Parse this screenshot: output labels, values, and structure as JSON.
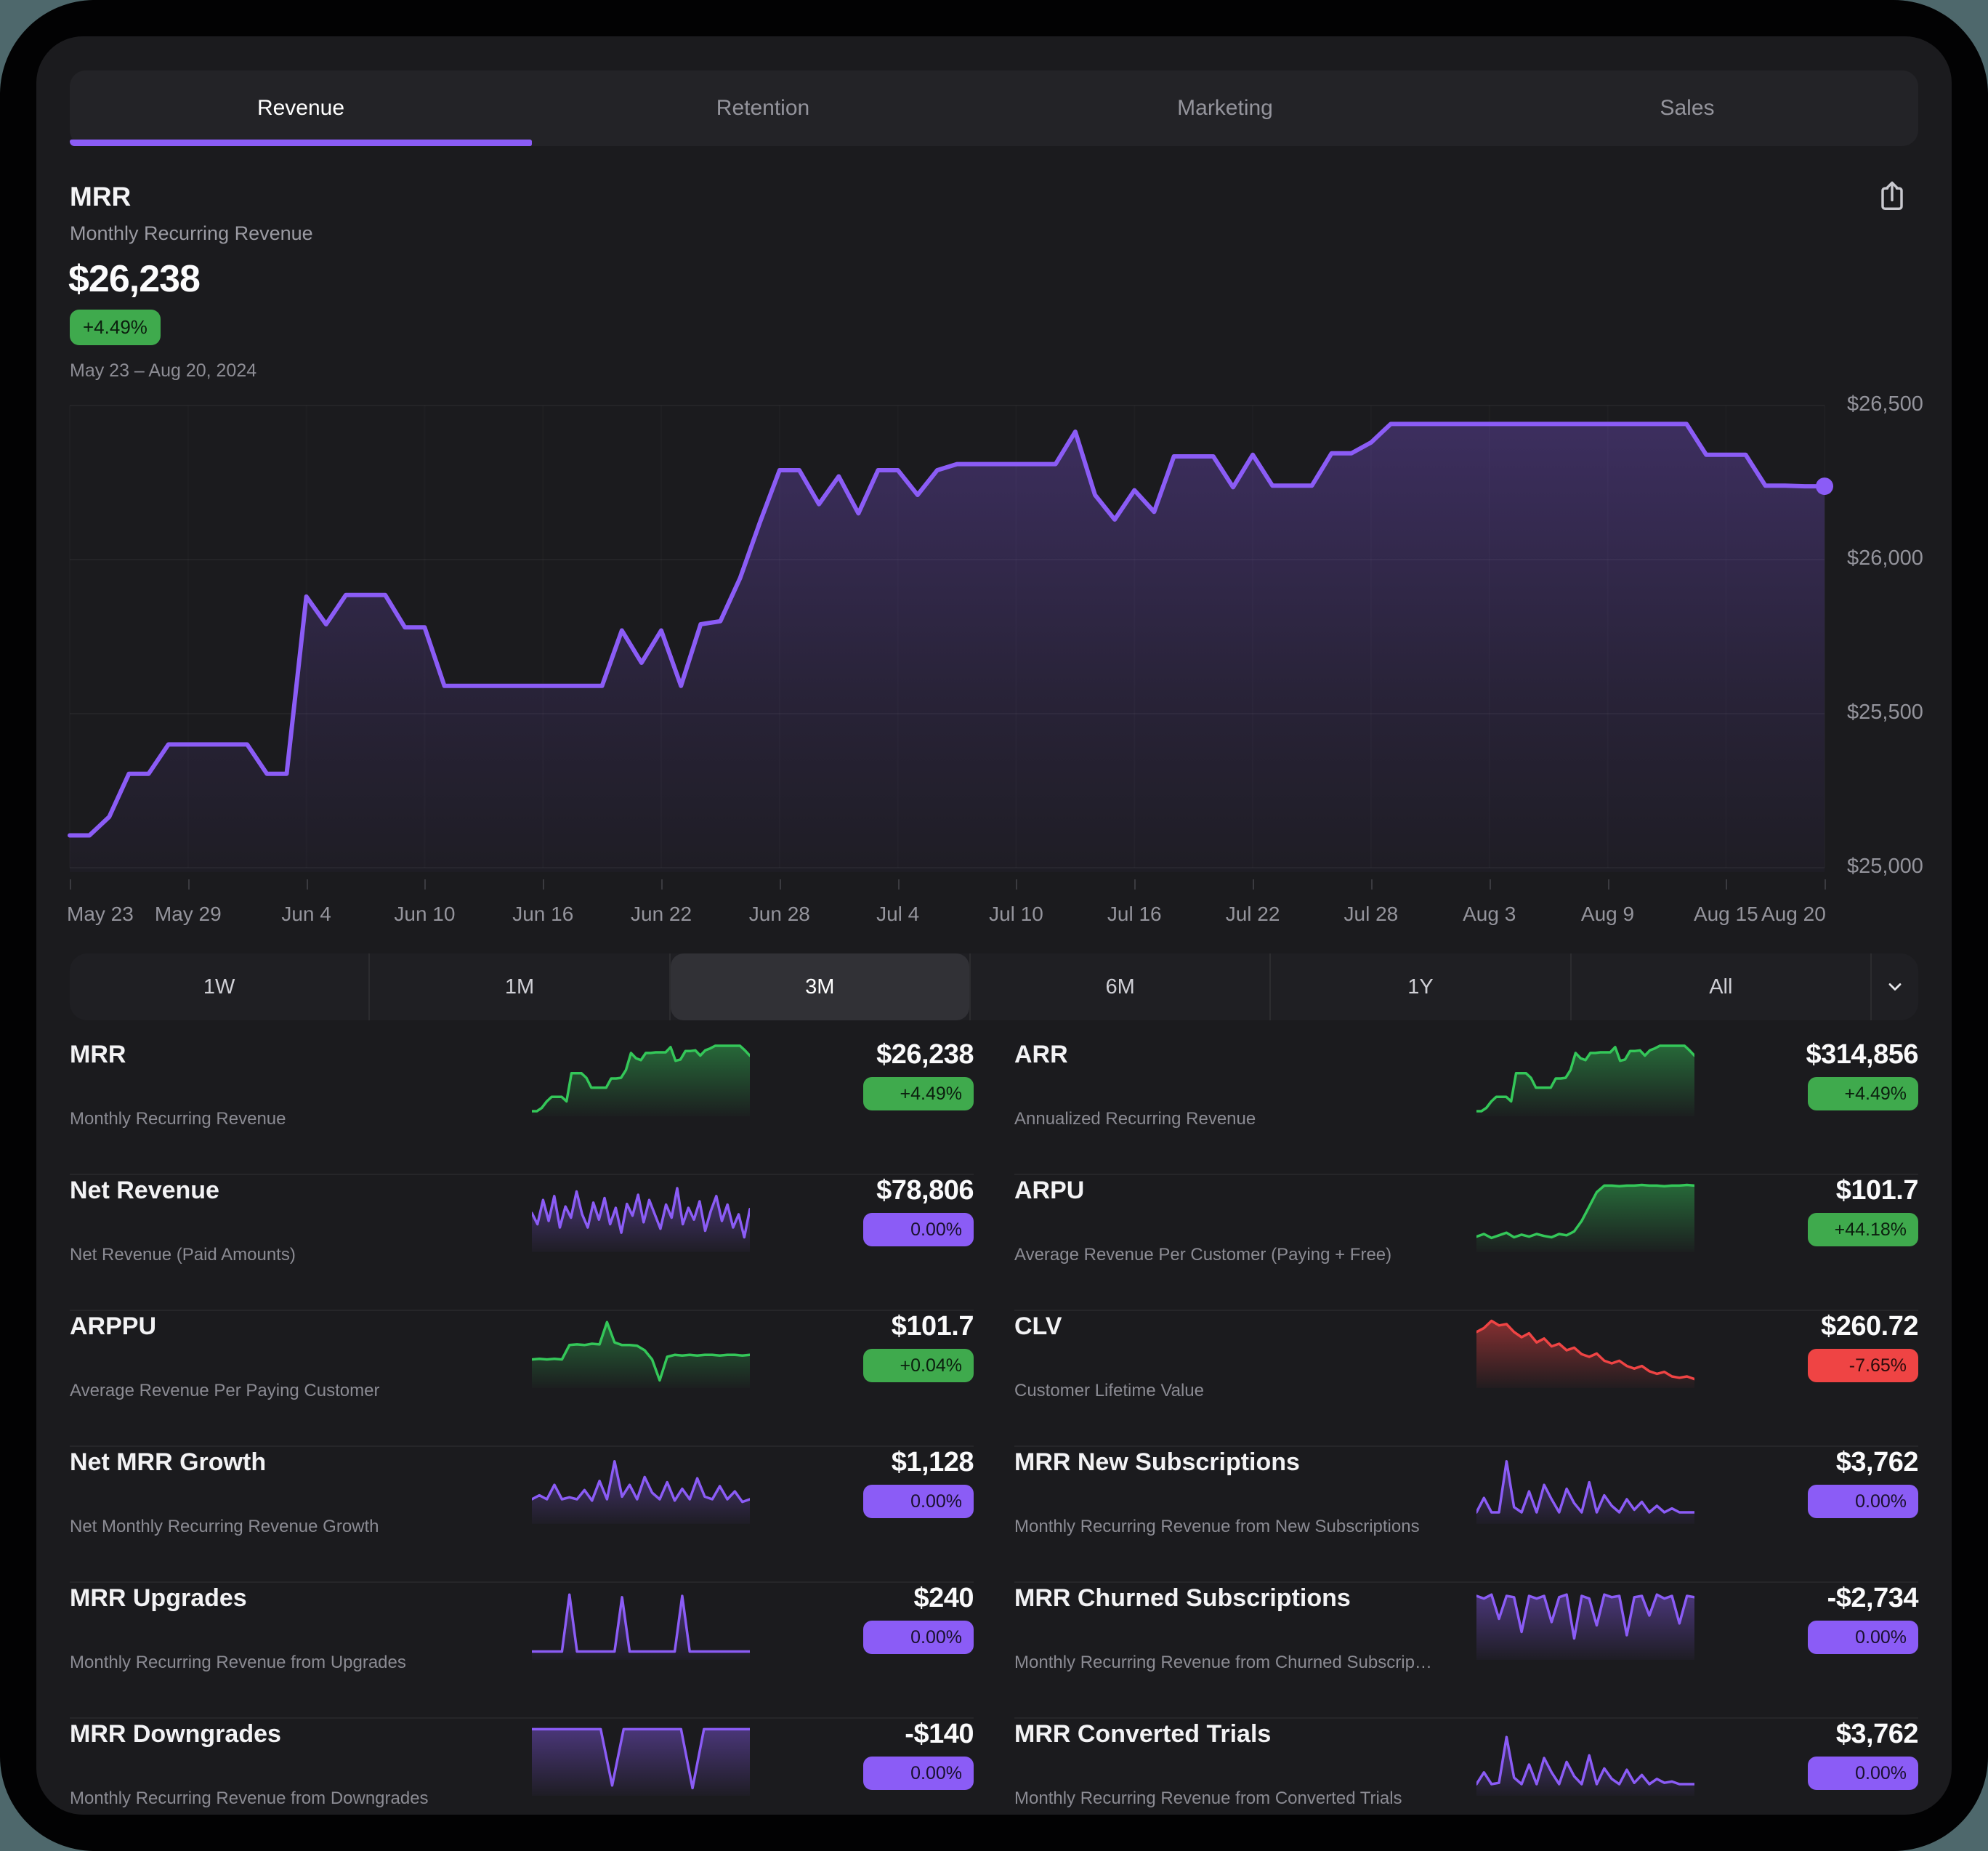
{
  "colors": {
    "accent_purple": "#8b5cf6",
    "positive_green": "#3faa4d",
    "negative_red": "#ef4444",
    "spark_green": "#34c759",
    "app_background": "#1b1b1e"
  },
  "tabs": {
    "items": [
      {
        "label": "Revenue",
        "active": true
      },
      {
        "label": "Retention",
        "active": false
      },
      {
        "label": "Marketing",
        "active": false
      },
      {
        "label": "Sales",
        "active": false
      }
    ]
  },
  "header": {
    "title": "MRR",
    "subtitle": "Monthly Recurring Revenue",
    "value": "$26,238",
    "change": "+4.49%",
    "change_direction": "up",
    "date_range": "May 23 – Aug 20, 2024"
  },
  "chart_data": {
    "type": "area",
    "title": "MRR",
    "period_label": "May 23 – Aug 20, 2024",
    "line_color": "#8b5cf6",
    "ylim": [
      25000,
      26500
    ],
    "y_ticks": [
      {
        "label": "$26,500",
        "value": 26500
      },
      {
        "label": "$26,000",
        "value": 26000
      },
      {
        "label": "$25,500",
        "value": 25500
      },
      {
        "label": "$25,000",
        "value": 25000
      }
    ],
    "x_tick_labels": [
      "May 23",
      "May 29",
      "Jun 4",
      "Jun 10",
      "Jun 16",
      "Jun 22",
      "Jun 28",
      "Jul 4",
      "Jul 10",
      "Jul 16",
      "Jul 22",
      "Jul 28",
      "Aug 3",
      "Aug 9",
      "Aug 15",
      "Aug 20"
    ],
    "x_tick_days": [
      0,
      6,
      12,
      18,
      24,
      30,
      36,
      42,
      48,
      54,
      60,
      66,
      72,
      78,
      84,
      89
    ],
    "end_value": 26238,
    "values": [
      25105,
      25105,
      25165,
      25305,
      25305,
      25400,
      25400,
      25400,
      25400,
      25400,
      25305,
      25305,
      25880,
      25790,
      25885,
      25885,
      25885,
      25780,
      25780,
      25590,
      25590,
      25590,
      25590,
      25590,
      25590,
      25590,
      25590,
      25590,
      25770,
      25665,
      25770,
      25590,
      25790,
      25800,
      25940,
      26120,
      26290,
      26290,
      26180,
      26270,
      26150,
      26290,
      26290,
      26210,
      26290,
      26310,
      26310,
      26310,
      26310,
      26310,
      26310,
      26415,
      26210,
      26130,
      26225,
      26155,
      26335,
      26335,
      26335,
      26235,
      26340,
      26240,
      26240,
      26240,
      26345,
      26345,
      26380,
      26440,
      26440,
      26440,
      26440,
      26440,
      26440,
      26440,
      26440,
      26440,
      26440,
      26440,
      26440,
      26440,
      26440,
      26440,
      26440,
      26340,
      26340,
      26340,
      26240,
      26240,
      26238,
      26238
    ]
  },
  "range_selector": {
    "options": [
      "1W",
      "1M",
      "3M",
      "6M",
      "1Y",
      "All"
    ],
    "selected": "3M"
  },
  "metrics": [
    {
      "id": "mrr",
      "title": "MRR",
      "subtitle": "Monthly Recurring Revenue",
      "value": "$26,238",
      "change": "+4.49%",
      "trend": "up",
      "spark_color": "green",
      "spark": [
        0,
        0,
        0.05,
        0.15,
        0.22,
        0.22,
        0.22,
        0.15,
        0.58,
        0.58,
        0.58,
        0.51,
        0.36,
        0.36,
        0.36,
        0.36,
        0.5,
        0.5,
        0.51,
        0.63,
        0.89,
        0.81,
        0.78,
        0.89,
        0.89,
        0.9,
        0.9,
        0.9,
        0.98,
        0.77,
        0.79,
        0.92,
        0.92,
        0.93,
        0.85,
        0.93,
        0.96,
        1,
        1,
        1,
        1,
        1,
        1,
        0.93,
        0.85
      ]
    },
    {
      "id": "arr",
      "title": "ARR",
      "subtitle": "Annualized Recurring Revenue",
      "value": "$314,856",
      "change": "+4.49%",
      "trend": "up",
      "spark_color": "green",
      "spark": [
        0,
        0,
        0.05,
        0.15,
        0.22,
        0.22,
        0.22,
        0.15,
        0.58,
        0.58,
        0.58,
        0.51,
        0.36,
        0.36,
        0.36,
        0.36,
        0.5,
        0.5,
        0.51,
        0.63,
        0.89,
        0.81,
        0.78,
        0.89,
        0.89,
        0.9,
        0.9,
        0.9,
        0.98,
        0.77,
        0.79,
        0.92,
        0.92,
        0.93,
        0.85,
        0.93,
        0.96,
        1,
        1,
        1,
        1,
        1,
        1,
        0.93,
        0.85
      ]
    },
    {
      "id": "net-revenue",
      "title": "Net Revenue",
      "subtitle": "Net Revenue (Paid Amounts)",
      "value": "$78,806",
      "change": "0.00%",
      "trend": "neutral",
      "spark_color": "purple",
      "spark": [
        0.52,
        0.35,
        0.72,
        0.4,
        0.78,
        0.3,
        0.62,
        0.45,
        0.85,
        0.5,
        0.3,
        0.68,
        0.42,
        0.75,
        0.35,
        0.6,
        0.22,
        0.66,
        0.48,
        0.8,
        0.38,
        0.72,
        0.5,
        0.28,
        0.65,
        0.45,
        0.9,
        0.35,
        0.6,
        0.42,
        0.7,
        0.25,
        0.55,
        0.78,
        0.4,
        0.65,
        0.3,
        0.5,
        0.15,
        0.58
      ]
    },
    {
      "id": "arpu",
      "title": "ARPU",
      "subtitle": "Average Revenue Per Customer (Paying + Free)",
      "value": "$101.7",
      "change": "+44.18%",
      "trend": "up",
      "spark_color": "green",
      "spark": [
        0.16,
        0.2,
        0.14,
        0.18,
        0.22,
        0.15,
        0.19,
        0.16,
        0.2,
        0.17,
        0.15,
        0.2,
        0.18,
        0.24,
        0.4,
        0.62,
        0.84,
        0.94,
        0.94,
        0.93,
        0.94,
        0.94,
        0.95,
        0.94,
        0.94,
        0.93,
        0.94,
        0.94,
        0.95,
        0.94
      ]
    },
    {
      "id": "arppu",
      "title": "ARPPU",
      "subtitle": "Average Revenue Per Paying Customer",
      "value": "$101.7",
      "change": "+0.04%",
      "trend": "up",
      "spark_color": "green",
      "spark": [
        0.36,
        0.37,
        0.36,
        0.37,
        0.36,
        0.58,
        0.59,
        0.58,
        0.6,
        0.59,
        0.93,
        0.62,
        0.58,
        0.58,
        0.57,
        0.5,
        0.36,
        0.04,
        0.4,
        0.43,
        0.42,
        0.43,
        0.42,
        0.43,
        0.43,
        0.42,
        0.43,
        0.43,
        0.42,
        0.43
      ]
    },
    {
      "id": "clv",
      "title": "CLV",
      "subtitle": "Customer Lifetime Value",
      "value": "$260.72",
      "change": "-7.65%",
      "trend": "down",
      "spark_color": "red",
      "spark": [
        0.78,
        0.84,
        0.95,
        0.88,
        0.9,
        0.78,
        0.7,
        0.76,
        0.62,
        0.68,
        0.56,
        0.6,
        0.5,
        0.54,
        0.44,
        0.4,
        0.45,
        0.34,
        0.3,
        0.34,
        0.26,
        0.22,
        0.26,
        0.18,
        0.14,
        0.17,
        0.1,
        0.08,
        0.1,
        0.06
      ]
    },
    {
      "id": "net-mrr-growth",
      "title": "Net MRR Growth",
      "subtitle": "Net Monthly Recurring Revenue Growth",
      "value": "$1,128",
      "change": "0.00%",
      "trend": "neutral",
      "spark_color": "purple",
      "spark": [
        0.3,
        0.36,
        0.3,
        0.52,
        0.3,
        0.33,
        0.3,
        0.44,
        0.28,
        0.58,
        0.3,
        0.88,
        0.34,
        0.52,
        0.3,
        0.64,
        0.4,
        0.3,
        0.56,
        0.28,
        0.46,
        0.3,
        0.62,
        0.34,
        0.3,
        0.5,
        0.3,
        0.42,
        0.26,
        0.3
      ]
    },
    {
      "id": "mrr-new-subscriptions",
      "title": "MRR New Subscriptions",
      "subtitle": "Monthly Recurring Revenue from New Subscriptions",
      "value": "$3,762",
      "change": "0.00%",
      "trend": "neutral",
      "spark_color": "purple",
      "spark": [
        0.1,
        0.32,
        0.1,
        0.1,
        0.88,
        0.18,
        0.1,
        0.42,
        0.1,
        0.52,
        0.3,
        0.1,
        0.46,
        0.24,
        0.1,
        0.56,
        0.1,
        0.36,
        0.2,
        0.1,
        0.3,
        0.14,
        0.26,
        0.1,
        0.2,
        0.1,
        0.16,
        0.1,
        0.1,
        0.1
      ]
    },
    {
      "id": "mrr-upgrades",
      "title": "MRR Upgrades",
      "subtitle": "Monthly Recurring Revenue from Upgrades",
      "value": "$240",
      "change": "0.00%",
      "trend": "neutral",
      "spark_color": "purple",
      "spark": [
        0.05,
        0.05,
        0.05,
        0.05,
        0.05,
        0.92,
        0.05,
        0.05,
        0.05,
        0.05,
        0.05,
        0.05,
        0.88,
        0.05,
        0.05,
        0.05,
        0.05,
        0.05,
        0.05,
        0.05,
        0.9,
        0.05,
        0.05,
        0.05,
        0.05,
        0.05,
        0.05,
        0.05,
        0.05,
        0.05
      ]
    },
    {
      "id": "mrr-churned-subscriptions",
      "title": "MRR Churned Subscriptions",
      "subtitle": "Monthly Recurring Revenue from Churned Subscrip…",
      "value": "-$2,734",
      "change": "0.00%",
      "trend": "neutral",
      "spark_color": "purple",
      "spark": [
        0.9,
        0.86,
        0.92,
        0.55,
        0.9,
        0.88,
        0.35,
        0.9,
        0.86,
        0.9,
        0.5,
        0.88,
        0.92,
        0.25,
        0.9,
        0.86,
        0.45,
        0.92,
        0.88,
        0.9,
        0.3,
        0.88,
        0.9,
        0.6,
        0.92,
        0.86,
        0.9,
        0.48,
        0.9,
        0.88
      ]
    },
    {
      "id": "mrr-downgrades",
      "title": "MRR Downgrades",
      "subtitle": "Monthly Recurring Revenue from Downgrades",
      "value": "-$140",
      "change": "0.00%",
      "trend": "neutral",
      "spark_color": "purple",
      "spark": [
        0.94,
        0.94,
        0.94,
        0.94,
        0.94,
        0.94,
        0.94,
        0.08,
        0.94,
        0.94,
        0.94,
        0.94,
        0.94,
        0.94,
        0.04,
        0.94,
        0.94,
        0.94,
        0.94,
        0.94
      ]
    },
    {
      "id": "mrr-converted-trials",
      "title": "MRR Converted Trials",
      "subtitle": "Monthly Recurring Revenue from Converted Trials",
      "value": "$3,762",
      "change": "0.00%",
      "trend": "neutral",
      "spark_color": "purple",
      "spark": [
        0.1,
        0.28,
        0.1,
        0.12,
        0.82,
        0.2,
        0.1,
        0.4,
        0.1,
        0.5,
        0.28,
        0.1,
        0.44,
        0.22,
        0.1,
        0.54,
        0.1,
        0.34,
        0.18,
        0.1,
        0.32,
        0.12,
        0.24,
        0.1,
        0.18,
        0.12,
        0.14,
        0.1,
        0.1,
        0.1
      ]
    }
  ]
}
